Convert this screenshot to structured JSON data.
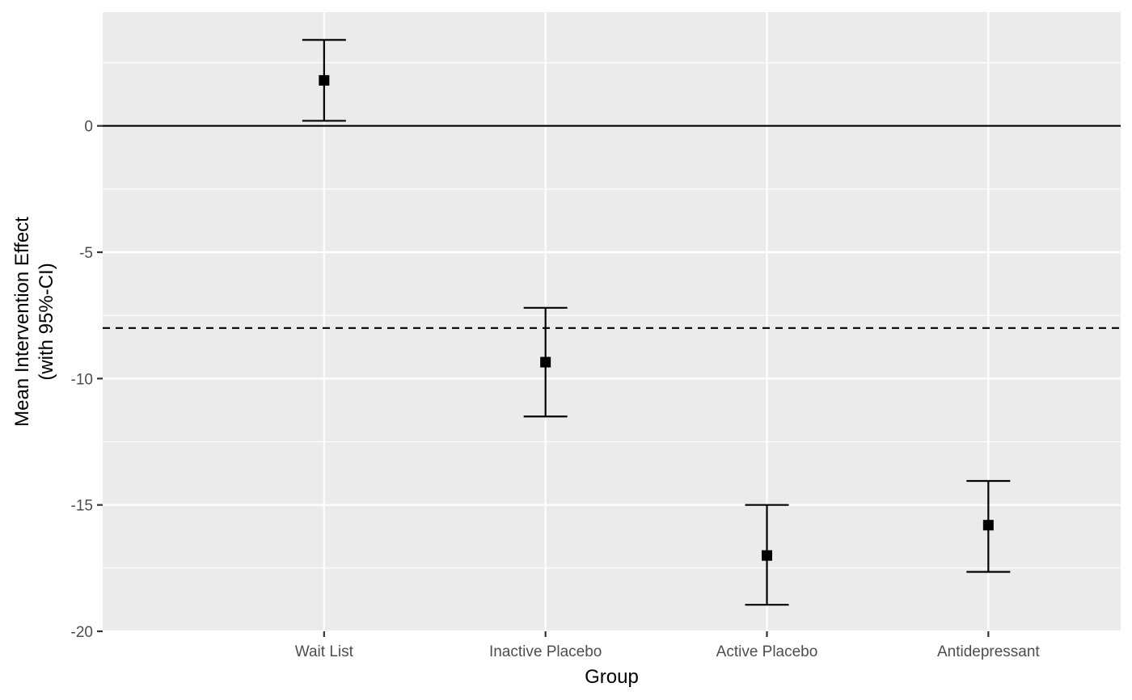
{
  "chart_data": {
    "type": "errorbar",
    "title": "",
    "xlabel": "Group",
    "ylabel_lines": [
      "Mean Intervention Effect",
      "(with 95%-CI)"
    ],
    "categories": [
      "Wait List",
      "Inactive Placebo",
      "Active Placebo",
      "Antidepressant"
    ],
    "means": [
      1.8,
      -9.35,
      -17.0,
      -15.8
    ],
    "ci_lower": [
      0.2,
      -11.5,
      -18.95,
      -17.65
    ],
    "ci_upper": [
      3.4,
      -7.2,
      -15.0,
      -14.05
    ],
    "ylim": [
      -20,
      4.5
    ],
    "yticks": [
      0,
      -5,
      -10,
      -15,
      -20
    ],
    "ytick_labels": [
      "0",
      "-5",
      "-10",
      "-15",
      "-20"
    ],
    "reference_lines": [
      {
        "y": 0,
        "style": "solid"
      },
      {
        "y": -8,
        "style": "dashed"
      }
    ],
    "grid": true,
    "panel_background": "#ebebeb",
    "grid_color": "#ffffff",
    "mark_color": "#000000"
  }
}
